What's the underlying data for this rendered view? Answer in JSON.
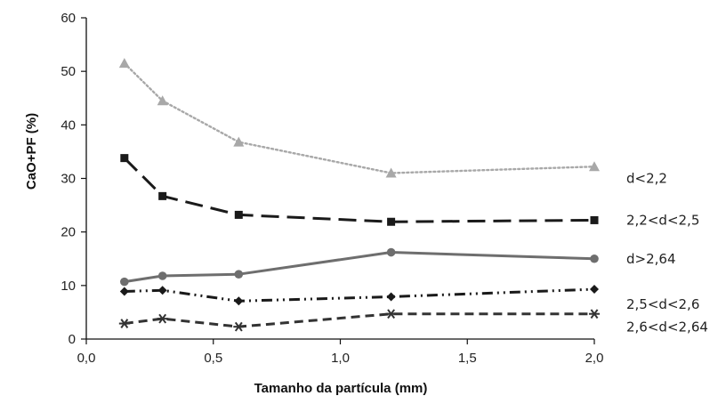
{
  "chart_data": {
    "type": "line",
    "xlabel": "Tamanho da partícula (mm)",
    "ylabel": "CaO+PF (%)",
    "xlim": [
      0,
      2.0
    ],
    "ylim": [
      0,
      60
    ],
    "x_ticks": [
      "0,0",
      "0,5",
      "1,0",
      "1,5",
      "2,0"
    ],
    "y_ticks": [
      "0",
      "10",
      "20",
      "30",
      "40",
      "50",
      "60"
    ],
    "grid": false,
    "legend": "inline labels at right",
    "series": [
      {
        "name": "d<2,2",
        "color": "#a8a8a8",
        "marker": "triangle",
        "line_style": "dotted",
        "x": [
          0.15,
          0.3,
          0.6,
          1.2,
          2.0
        ],
        "y": [
          51.5,
          44.5,
          36.8,
          31.0,
          32.2
        ]
      },
      {
        "name": "2,2<d<2,5",
        "color": "#1a1a1a",
        "marker": "square",
        "line_style": "long-dash",
        "x": [
          0.15,
          0.3,
          0.6,
          1.2,
          2.0
        ],
        "y": [
          33.8,
          26.7,
          23.2,
          21.9,
          22.2
        ]
      },
      {
        "name": "d>2,64",
        "color": "#6e6e6e",
        "marker": "circle",
        "line_style": "solid",
        "x": [
          0.15,
          0.3,
          0.6,
          1.2,
          2.0
        ],
        "y": [
          10.7,
          11.8,
          12.1,
          16.2,
          15.0
        ]
      },
      {
        "name": "2,5<d<2,6",
        "color": "#1a1a1a",
        "marker": "diamond",
        "line_style": "dash-dot-dot",
        "x": [
          0.15,
          0.3,
          0.6,
          1.2,
          2.0
        ],
        "y": [
          8.9,
          9.1,
          7.1,
          7.9,
          9.3
        ]
      },
      {
        "name": "2,6<d<2,64",
        "color": "#333333",
        "marker": "asterisk",
        "line_style": "dashed",
        "x": [
          0.15,
          0.3,
          0.6,
          1.2,
          2.0
        ],
        "y": [
          2.9,
          3.8,
          2.3,
          4.7,
          4.7
        ]
      }
    ]
  }
}
